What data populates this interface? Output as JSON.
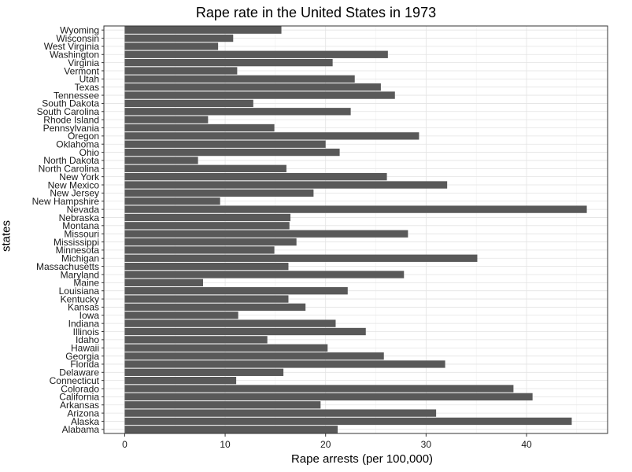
{
  "chart_data": {
    "type": "bar",
    "orientation": "horizontal",
    "title": "Rape rate in the United States in 1973",
    "xlabel": "Rape arrests (per 100,000)",
    "ylabel": "states",
    "xlim": [
      0,
      46
    ],
    "xticks": [
      0,
      10,
      20,
      30,
      40
    ],
    "grid": true,
    "bar_color": "#595959",
    "categories": [
      "Alabama",
      "Alaska",
      "Arizona",
      "Arkansas",
      "California",
      "Colorado",
      "Connecticut",
      "Delaware",
      "Florida",
      "Georgia",
      "Hawaii",
      "Idaho",
      "Illinois",
      "Indiana",
      "Iowa",
      "Kansas",
      "Kentucky",
      "Louisiana",
      "Maine",
      "Maryland",
      "Massachusetts",
      "Michigan",
      "Minnesota",
      "Mississippi",
      "Missouri",
      "Montana",
      "Nebraska",
      "Nevada",
      "New Hampshire",
      "New Jersey",
      "New Mexico",
      "New York",
      "North Carolina",
      "North Dakota",
      "Ohio",
      "Oklahoma",
      "Oregon",
      "Pennsylvania",
      "Rhode Island",
      "South Carolina",
      "South Dakota",
      "Tennessee",
      "Texas",
      "Utah",
      "Vermont",
      "Virginia",
      "Washington",
      "West Virginia",
      "Wisconsin",
      "Wyoming"
    ],
    "values": [
      21.2,
      44.5,
      31.0,
      19.5,
      40.6,
      38.7,
      11.1,
      15.8,
      31.9,
      25.8,
      20.2,
      14.2,
      24.0,
      21.0,
      11.3,
      18.0,
      16.3,
      22.2,
      7.8,
      27.8,
      16.3,
      35.1,
      14.9,
      17.1,
      28.2,
      16.4,
      16.5,
      46.0,
      9.5,
      18.8,
      32.1,
      26.1,
      16.1,
      7.3,
      21.4,
      20.0,
      29.3,
      14.9,
      8.3,
      22.5,
      12.8,
      26.9,
      25.5,
      22.9,
      11.2,
      20.7,
      26.2,
      9.3,
      10.8,
      15.6
    ]
  }
}
